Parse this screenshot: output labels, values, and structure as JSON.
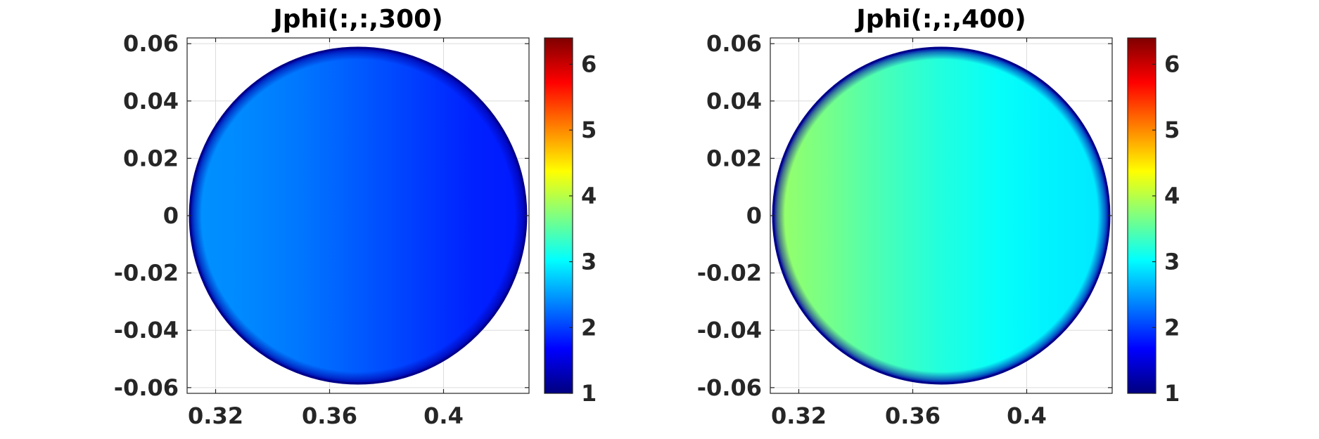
{
  "chart_data": [
    {
      "type": "heatmap",
      "title": "Jphi(:,:,300)",
      "xlabel": "",
      "ylabel": "",
      "xlim": [
        0.31,
        0.43
      ],
      "ylim": [
        -0.062,
        0.062
      ],
      "x_ticks": [
        0.32,
        0.36,
        0.4
      ],
      "x_tick_labels": [
        "0.32",
        "0.36",
        "0.4"
      ],
      "y_ticks": [
        0.06,
        0.04,
        0.02,
        0,
        -0.02,
        -0.04,
        -0.06
      ],
      "y_tick_labels": [
        "0.06",
        "0.04",
        "0.02",
        "0",
        "-0.02",
        "-0.04",
        "-0.06"
      ],
      "grid": true,
      "domain": {
        "shape": "circle",
        "center_x": 0.37,
        "center_y": 0,
        "radius": 0.059
      },
      "value_profile_x": [
        0.311,
        0.33,
        0.35,
        0.37,
        0.39,
        0.41,
        0.429
      ],
      "value_profile": [
        2.45,
        2.4,
        2.3,
        2.15,
        2.0,
        1.85,
        1.8
      ],
      "boundary_value": 1.2,
      "colorbar": {
        "colormap": "jet",
        "clim": [
          1,
          6.4
        ],
        "ticks": [
          1,
          2,
          3,
          4,
          5,
          6
        ],
        "tick_labels": [
          "1",
          "2",
          "3",
          "4",
          "5",
          "6"
        ]
      }
    },
    {
      "type": "heatmap",
      "title": "Jphi(:,:,400)",
      "xlabel": "",
      "ylabel": "",
      "xlim": [
        0.31,
        0.43
      ],
      "ylim": [
        -0.062,
        0.062
      ],
      "x_ticks": [
        0.32,
        0.36,
        0.4
      ],
      "x_tick_labels": [
        "0.32",
        "0.36",
        "0.4"
      ],
      "y_ticks": [
        0.06,
        0.04,
        0.02,
        0,
        -0.02,
        -0.04,
        -0.06
      ],
      "y_tick_labels": [
        "0.06",
        "0.04",
        "0.02",
        "0",
        "-0.02",
        "-0.04",
        "-0.06"
      ],
      "grid": true,
      "domain": {
        "shape": "circle",
        "center_x": 0.37,
        "center_y": 0,
        "radius": 0.059
      },
      "value_profile_x": [
        0.311,
        0.33,
        0.35,
        0.37,
        0.39,
        0.41,
        0.429
      ],
      "value_profile": [
        3.85,
        3.65,
        3.4,
        3.2,
        3.05,
        2.95,
        2.9
      ],
      "boundary_value": 1.2,
      "colorbar": {
        "colormap": "jet",
        "clim": [
          1,
          6.4
        ],
        "ticks": [
          1,
          2,
          3,
          4,
          5,
          6
        ],
        "tick_labels": [
          "1",
          "2",
          "3",
          "4",
          "5",
          "6"
        ]
      }
    }
  ]
}
